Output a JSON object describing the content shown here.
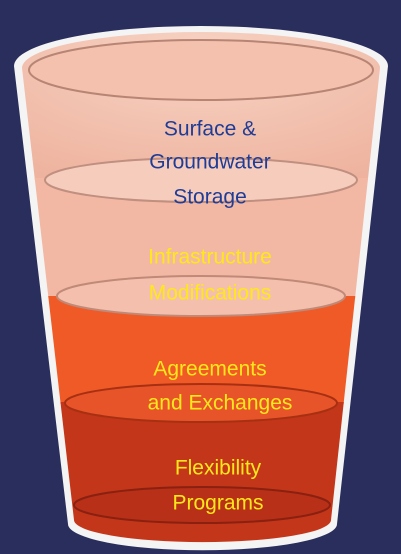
{
  "layers": [
    {
      "label": [
        "Surface &",
        "Groundwater",
        "Storage"
      ]
    },
    {
      "label": [
        "Infrastructure",
        "Modifications"
      ]
    },
    {
      "label": [
        "Agreements",
        "and Exchanges"
      ]
    },
    {
      "label": [
        "Flexibility",
        "Programs"
      ]
    }
  ]
}
